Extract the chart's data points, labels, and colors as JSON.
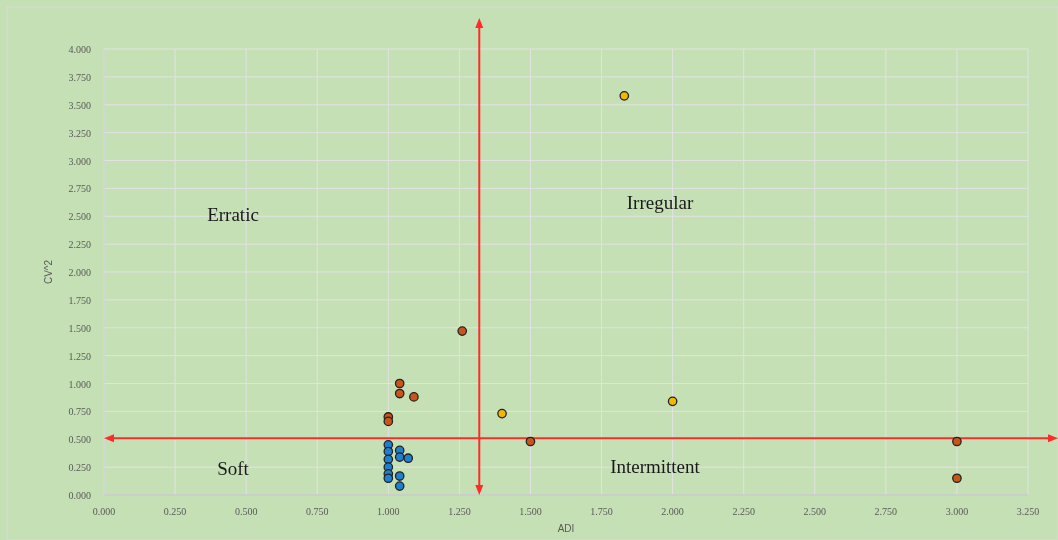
{
  "chart_data": {
    "type": "scatter",
    "xlabel": "ADI",
    "ylabel": "CV^2",
    "xlim": [
      0,
      3.25
    ],
    "ylim": [
      0,
      4
    ],
    "xticks": [
      {
        "value": 0,
        "label": "0.000"
      },
      {
        "value": 0.25,
        "label": "0.250"
      },
      {
        "value": 0.5,
        "label": "0.500"
      },
      {
        "value": 0.75,
        "label": "0.750"
      },
      {
        "value": 1,
        "label": "1.000"
      },
      {
        "value": 1.25,
        "label": "1.250"
      },
      {
        "value": 1.5,
        "label": "1.500"
      },
      {
        "value": 1.75,
        "label": "1.750"
      },
      {
        "value": 2,
        "label": "2.000"
      },
      {
        "value": 2.25,
        "label": "2.250"
      },
      {
        "value": 2.5,
        "label": "2.500"
      },
      {
        "value": 2.75,
        "label": "2.750"
      },
      {
        "value": 3,
        "label": "3.000"
      },
      {
        "value": 3.25,
        "label": "3.250"
      }
    ],
    "yticks": [
      {
        "value": 0,
        "label": "0.000"
      },
      {
        "value": 0.25,
        "label": "0.250"
      },
      {
        "value": 0.5,
        "label": "0.500"
      },
      {
        "value": 0.75,
        "label": "0.750"
      },
      {
        "value": 1,
        "label": "1.000"
      },
      {
        "value": 1.25,
        "label": "1.250"
      },
      {
        "value": 1.5,
        "label": "1.500"
      },
      {
        "value": 1.75,
        "label": "1.750"
      },
      {
        "value": 2,
        "label": "2.000"
      },
      {
        "value": 2.25,
        "label": "2.250"
      },
      {
        "value": 2.5,
        "label": "2.500"
      },
      {
        "value": 2.75,
        "label": "2.750"
      },
      {
        "value": 3,
        "label": "3.000"
      },
      {
        "value": 3.25,
        "label": "3.250"
      },
      {
        "value": 3.5,
        "label": "3.500"
      },
      {
        "value": 3.75,
        "label": "3.750"
      },
      {
        "value": 4,
        "label": "4.000"
      }
    ],
    "grid": true,
    "marker": "circle",
    "series": [
      {
        "color": "#1f80d0",
        "x": [
          1.0,
          1.0,
          1.0,
          1.0,
          1.0,
          1.0,
          1.04,
          1.04,
          1.04,
          1.04,
          1.07
        ],
        "values": [
          0.45,
          0.39,
          0.32,
          0.25,
          0.19,
          0.15,
          0.4,
          0.34,
          0.17,
          0.08,
          0.33
        ]
      },
      {
        "color": "#c8561a",
        "x": [
          1.0,
          1.0,
          1.04,
          1.04,
          1.09,
          1.26,
          1.5,
          3.0,
          3.0
        ],
        "values": [
          0.7,
          0.66,
          1.0,
          0.91,
          0.88,
          1.47,
          0.48,
          0.48,
          0.15
        ]
      },
      {
        "color": "#f5b800",
        "x": [
          1.4,
          1.83,
          2.0
        ],
        "values": [
          0.73,
          3.58,
          0.84
        ]
      }
    ],
    "ref_lines": [
      {
        "axis": "x",
        "value": 1.32,
        "color": "#ff2a2a"
      },
      {
        "axis": "y",
        "value": 0.51,
        "color": "#ff2a2a"
      }
    ],
    "annotations": [
      "Erratic",
      "Irregular",
      "Soft",
      "Intermittent"
    ]
  }
}
